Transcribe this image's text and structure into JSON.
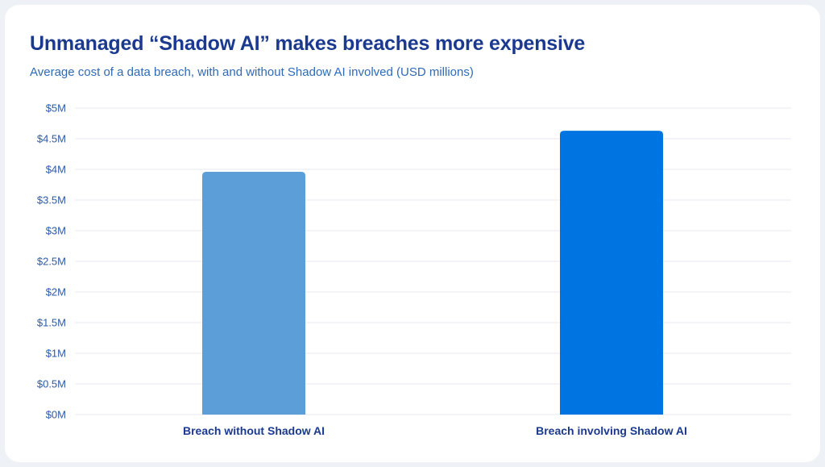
{
  "header": {
    "title": "Unmanaged “Shadow AI” makes breaches more expensive",
    "subtitle": "Average cost of a data breach, with and without Shadow AI involved (USD millions)"
  },
  "colors": {
    "bar_without": "#5b9ed8",
    "bar_with": "#0074e0",
    "grid": "#e6e9ef",
    "title": "#1b3a8f",
    "subtitle": "#2f6ab8"
  },
  "chart_data": {
    "type": "bar",
    "title": "Unmanaged “Shadow AI” makes breaches more expensive",
    "subtitle": "Average cost of a data breach, with and without Shadow AI involved (USD millions)",
    "categories": [
      "Breach without Shadow AI",
      "Breach involving Shadow AI"
    ],
    "values": [
      3.96,
      4.63
    ],
    "ylim": [
      0,
      5
    ],
    "yticks": [
      0,
      0.5,
      1,
      1.5,
      2,
      2.5,
      3,
      3.5,
      4,
      4.5,
      5
    ],
    "ytick_labels": [
      "$0M",
      "$0.5M",
      "$1M",
      "$1.5M",
      "$2M",
      "$2.5M",
      "$3M",
      "$3.5M",
      "$4M",
      "$4.5M",
      "$5M"
    ],
    "xlabel": "",
    "ylabel": "",
    "grid": true,
    "legend": "none"
  }
}
